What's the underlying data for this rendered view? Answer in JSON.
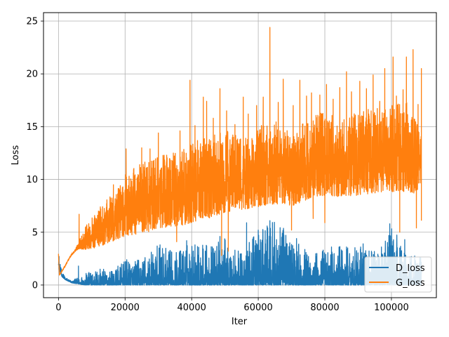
{
  "chart_data": {
    "type": "line",
    "title": "",
    "xlabel": "Iter",
    "ylabel": "Loss",
    "xlim": [
      -4500,
      113500
    ],
    "ylim": [
      -1.2,
      25.8
    ],
    "xticks": [
      0,
      20000,
      40000,
      60000,
      80000,
      100000
    ],
    "xtick_labels": [
      "0",
      "20000",
      "40000",
      "60000",
      "80000",
      "100000"
    ],
    "yticks": [
      0,
      5,
      10,
      15,
      20,
      25
    ],
    "ytick_labels": [
      "0",
      "5",
      "10",
      "15",
      "20",
      "25"
    ],
    "grid": true,
    "legend_position": "lower-right",
    "series": [
      {
        "name": "D_loss",
        "color": "#1f77b4",
        "x": [
          0,
          200,
          1000,
          2000,
          4000,
          8000,
          12000,
          16000,
          20000,
          25000,
          30000,
          35000,
          40000,
          45000,
          50000,
          55000,
          60000,
          65000,
          70000,
          75000,
          80000,
          85000,
          90000,
          95000,
          100000,
          105000,
          109000
        ],
        "low": [
          2.0,
          1.5,
          0.8,
          0.5,
          0.2,
          0.0,
          0.0,
          0.0,
          0.0,
          0.0,
          0.0,
          0.0,
          0.0,
          0.0,
          0.0,
          0.0,
          0.0,
          0.0,
          0.0,
          0.0,
          0.0,
          0.0,
          0.0,
          0.0,
          0.0,
          0.0,
          0.0
        ],
        "high": [
          6.2,
          2.5,
          1.3,
          0.8,
          0.4,
          1.1,
          1.6,
          1.4,
          2.3,
          2.5,
          3.8,
          3.2,
          4.2,
          3.8,
          4.4,
          3.2,
          5.1,
          6.1,
          4.7,
          3.2,
          3.4,
          3.7,
          3.9,
          3.2,
          5.6,
          3.0,
          2.7
        ],
        "spikes": [
          [
            6000,
            1.8
          ],
          [
            9500,
            1.1
          ],
          [
            12500,
            1.5
          ],
          [
            20500,
            2.4
          ],
          [
            26000,
            2.6
          ],
          [
            30500,
            3.8
          ],
          [
            34000,
            3.1
          ],
          [
            38500,
            4.2
          ],
          [
            41000,
            3.8
          ],
          [
            44500,
            3.7
          ],
          [
            48500,
            4.6
          ],
          [
            53000,
            3.3
          ],
          [
            56500,
            5.9
          ],
          [
            58500,
            4.5
          ],
          [
            60000,
            5.2
          ],
          [
            63500,
            6.1
          ],
          [
            65500,
            4.3
          ],
          [
            67500,
            4.2
          ],
          [
            71500,
            4.4
          ],
          [
            74000,
            2.9
          ],
          [
            77500,
            2.5
          ],
          [
            79500,
            3.3
          ],
          [
            82000,
            3.6
          ],
          [
            86500,
            3.6
          ],
          [
            89500,
            2.8
          ],
          [
            91500,
            3.9
          ],
          [
            94000,
            3.2
          ],
          [
            97000,
            3.6
          ],
          [
            99500,
            5.8
          ],
          [
            102500,
            3.5
          ],
          [
            104000,
            4.3
          ],
          [
            106000,
            2.7
          ],
          [
            108500,
            2.6
          ]
        ]
      },
      {
        "name": "G_loss",
        "color": "#ff7f0e",
        "x": [
          0,
          300,
          1000,
          2000,
          3000,
          4000,
          5000,
          6000,
          8000,
          10000,
          12000,
          15000,
          18000,
          20000,
          22000,
          25000,
          28000,
          30000,
          35000,
          40000,
          45000,
          50000,
          55000,
          60000,
          65000,
          70000,
          75000,
          80000,
          85000,
          90000,
          95000,
          100000,
          105000,
          108000,
          109000
        ],
        "low": [
          2.9,
          0.9,
          1.2,
          1.7,
          2.3,
          2.8,
          3.1,
          3.3,
          3.0,
          2.9,
          3.0,
          3.2,
          3.5,
          3.3,
          3.6,
          3.5,
          4.0,
          4.2,
          4.3,
          4.5,
          4.9,
          5.5,
          5.9,
          6.1,
          6.3,
          6.2,
          6.8,
          7.1,
          7.0,
          7.1,
          7.3,
          7.4,
          7.3,
          7.5,
          9.5
        ],
        "high": [
          3.0,
          1.0,
          1.4,
          1.9,
          2.5,
          3.0,
          3.4,
          4.1,
          5.5,
          6.4,
          7.2,
          8.3,
          9.2,
          10.5,
          11.0,
          11.6,
          12.0,
          12.2,
          12.5,
          13.5,
          14.2,
          14.8,
          14.0,
          15.0,
          15.6,
          14.3,
          15.8,
          16.5,
          15.8,
          16.4,
          16.8,
          17.0,
          17.5,
          15.0,
          14.5
        ],
        "spikes": [
          [
            6200,
            6.7
          ],
          [
            8500,
            5.7
          ],
          [
            12000,
            7.0
          ],
          [
            16500,
            9.5
          ],
          [
            20300,
            12.9
          ],
          [
            22500,
            10.6
          ],
          [
            25000,
            13.0
          ],
          [
            27500,
            12.9
          ],
          [
            30000,
            14.4
          ],
          [
            32500,
            12.3
          ],
          [
            34500,
            12.5
          ],
          [
            36500,
            14.6
          ],
          [
            39500,
            19.4
          ],
          [
            41000,
            15.1
          ],
          [
            43500,
            17.8
          ],
          [
            44500,
            17.4
          ],
          [
            46500,
            15.8
          ],
          [
            48500,
            18.6
          ],
          [
            50500,
            16.5
          ],
          [
            53000,
            15.2
          ],
          [
            55500,
            17.8
          ],
          [
            57000,
            16.2
          ],
          [
            59500,
            17.0
          ],
          [
            61500,
            17.8
          ],
          [
            63500,
            24.4
          ],
          [
            66000,
            17.3
          ],
          [
            67500,
            19.5
          ],
          [
            70500,
            17.0
          ],
          [
            72500,
            19.4
          ],
          [
            74500,
            17.9
          ],
          [
            76000,
            18.2
          ],
          [
            78500,
            18.0
          ],
          [
            80500,
            19.0
          ],
          [
            82500,
            17.6
          ],
          [
            84500,
            18.7
          ],
          [
            86500,
            20.2
          ],
          [
            88000,
            18.3
          ],
          [
            90500,
            19.3
          ],
          [
            92500,
            18.6
          ],
          [
            94500,
            19.9
          ],
          [
            96500,
            17.4
          ],
          [
            98000,
            20.5
          ],
          [
            100500,
            21.6
          ],
          [
            101500,
            17.9
          ],
          [
            103500,
            18.5
          ],
          [
            104500,
            21.6
          ],
          [
            106500,
            22.3
          ],
          [
            108000,
            17.1
          ],
          [
            109000,
            20.5
          ]
        ],
        "dips": [
          [
            35500,
            4.1
          ],
          [
            49000,
            2.8
          ],
          [
            51000,
            3.2
          ],
          [
            70000,
            5.2
          ],
          [
            76500,
            6.3
          ],
          [
            80000,
            5.9
          ],
          [
            102500,
            5.0
          ],
          [
            107500,
            5.4
          ],
          [
            109000,
            6.1
          ]
        ]
      }
    ]
  }
}
